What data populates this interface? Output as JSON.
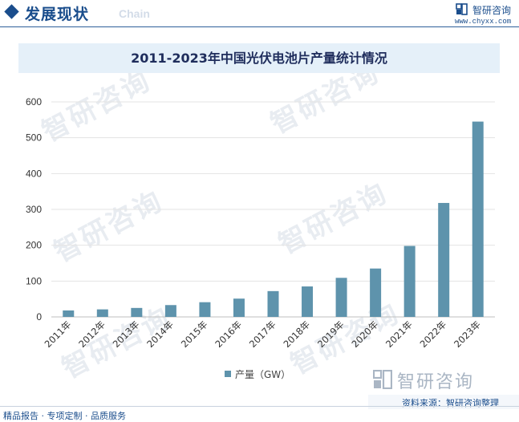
{
  "header": {
    "title": "发展现状",
    "subtitle_en": "Chain",
    "logo_name": "智研咨询",
    "logo_url": "www.chyxx.com"
  },
  "chart_data": {
    "type": "bar",
    "title": "2011-2023年中国光伏电池片产量统计情况",
    "categories": [
      "2011年",
      "2012年",
      "2013年",
      "2014年",
      "2015年",
      "2016年",
      "2017年",
      "2018年",
      "2019年",
      "2020年",
      "2021年",
      "2022年",
      "2023年"
    ],
    "series": [
      {
        "name": "产量（GW）",
        "values": [
          18,
          21,
          25,
          33,
          41,
          51,
          72,
          85,
          109,
          135,
          198,
          318,
          545
        ]
      }
    ],
    "ylim": [
      0,
      600
    ],
    "yticks": [
      0,
      100,
      200,
      300,
      400,
      500,
      600
    ],
    "grid": true,
    "legend": "bottom",
    "bar_color": "#5e93ac"
  },
  "watermark": {
    "text": "智研咨询"
  },
  "footer": {
    "left": "精品报告 · 专项定制 · 品质服务",
    "source": "资料来源：智研咨询整理",
    "logo_text": "智研咨询"
  }
}
